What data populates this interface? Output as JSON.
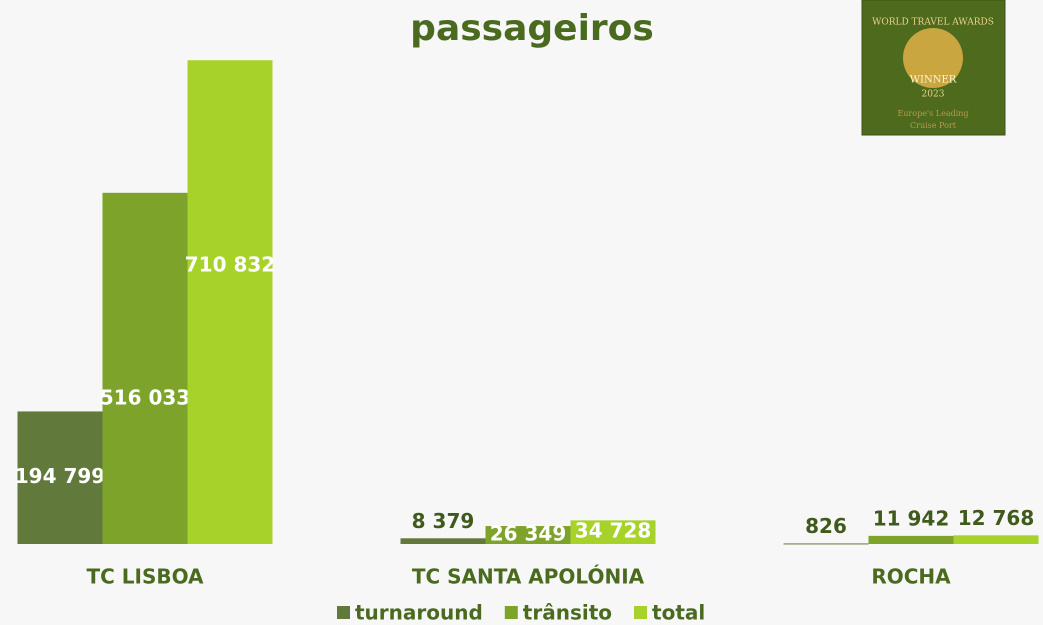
{
  "chart_data": {
    "type": "bar",
    "title": "passageiros",
    "categories": [
      "TC LISBOA",
      "TC SANTA APOLÓNIA",
      "ROCHA"
    ],
    "series": [
      {
        "name": "turnaround",
        "color": "#617a3c",
        "values": [
          194799,
          8379,
          826
        ],
        "value_labels": [
          "194 799",
          "8 379",
          "826"
        ]
      },
      {
        "name": "trânsito",
        "color": "#7ea32a",
        "values": [
          516033,
          26349,
          11942
        ],
        "value_labels": [
          "516 033",
          "26 349",
          "11 942"
        ]
      },
      {
        "name": "total",
        "color": "#a6d22a",
        "values": [
          710832,
          34728,
          12768
        ],
        "value_labels": [
          "710 832",
          "34 728",
          "12 768"
        ]
      }
    ],
    "ylim": [
      0,
      720000
    ],
    "legend": "bottom"
  },
  "badge": {
    "line1": "WORLD TRAVEL AWARDS",
    "line2": "WINNER",
    "line3": "2023",
    "line4": "Europe's Leading",
    "line5": "Cruise Port"
  }
}
